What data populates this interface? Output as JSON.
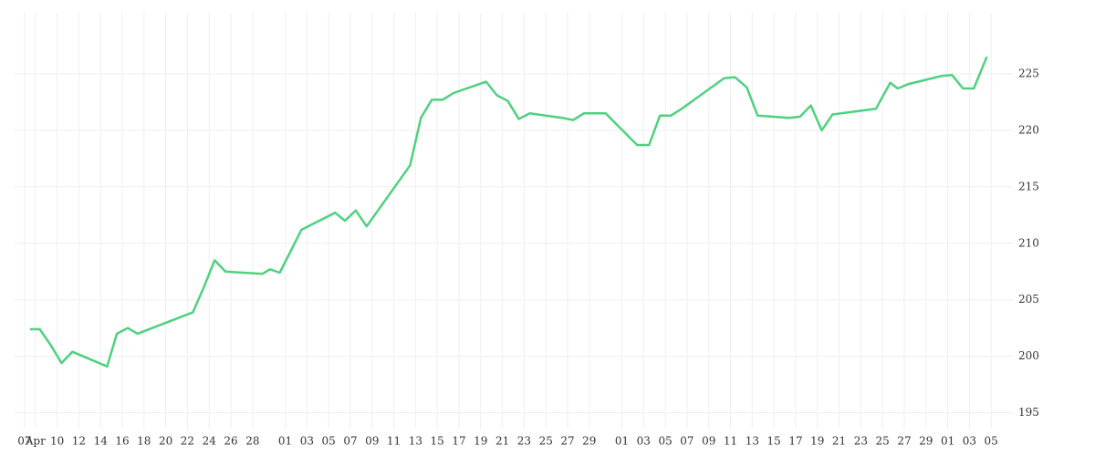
{
  "chart_data": {
    "type": "line",
    "x": [
      0.5,
      1.4,
      2.4,
      3.4,
      4.4,
      7.6,
      8.5,
      9.5,
      10.4,
      15.5,
      16.5,
      17.5,
      18.5,
      21.9,
      22.6,
      23.5,
      25.5,
      28.6,
      29.5,
      30.5,
      31.5,
      35.5,
      36.5,
      37.5,
      38.5,
      39.5,
      42.5,
      43.5,
      44.5,
      45.5,
      46.5,
      49.5,
      50.5,
      51.5,
      53.5,
      56.4,
      57.5,
      58.5,
      59.5,
      60.5,
      64.4,
      65.4,
      66.5,
      67.5,
      70.4,
      71.4,
      72.4,
      73.4,
      74.4,
      78.4,
      79.7,
      80.4,
      81.4,
      84.4,
      85.4,
      86.4,
      87.4,
      88.6
    ],
    "series": [
      {
        "color": "#4fd17f",
        "values": [
          202.4,
          202.4,
          201.0,
          199.4,
          200.4,
          199.1,
          202.0,
          202.5,
          202.0,
          203.9,
          206.1,
          208.5,
          207.5,
          207.3,
          207.7,
          207.4,
          211.2,
          212.7,
          212.0,
          212.9,
          211.5,
          216.9,
          221.1,
          222.7,
          222.7,
          223.3,
          224.3,
          223.1,
          222.6,
          221.0,
          221.5,
          221.1,
          220.9,
          221.5,
          221.5,
          218.7,
          218.7,
          221.3,
          221.3,
          221.9,
          224.6,
          224.7,
          223.8,
          221.3,
          221.1,
          221.2,
          222.2,
          220.0,
          221.4,
          221.9,
          224.2,
          223.7,
          224.1,
          224.8,
          224.9,
          223.7,
          223.7,
          226.5
        ]
      }
    ],
    "xlim": [
      -1,
      91
    ],
    "xticks": [
      {
        "value": 0,
        "label": "07"
      },
      {
        "value": 1,
        "label": "Apr"
      },
      {
        "value": 3,
        "label": "10"
      },
      {
        "value": 5,
        "label": "12"
      },
      {
        "value": 7,
        "label": "14"
      },
      {
        "value": 9,
        "label": "16"
      },
      {
        "value": 11,
        "label": "18"
      },
      {
        "value": 13,
        "label": "20"
      },
      {
        "value": 15,
        "label": "22"
      },
      {
        "value": 17,
        "label": "24"
      },
      {
        "value": 19,
        "label": "26"
      },
      {
        "value": 21,
        "label": "28"
      },
      {
        "value": 24,
        "label": "01"
      },
      {
        "value": 26,
        "label": "03"
      },
      {
        "value": 28,
        "label": "05"
      },
      {
        "value": 30,
        "label": "07"
      },
      {
        "value": 32,
        "label": "09"
      },
      {
        "value": 34,
        "label": "11"
      },
      {
        "value": 36,
        "label": "13"
      },
      {
        "value": 38,
        "label": "15"
      },
      {
        "value": 40,
        "label": "17"
      },
      {
        "value": 42,
        "label": "19"
      },
      {
        "value": 44,
        "label": "21"
      },
      {
        "value": 46,
        "label": "23"
      },
      {
        "value": 48,
        "label": "25"
      },
      {
        "value": 50,
        "label": "27"
      },
      {
        "value": 52,
        "label": "29"
      },
      {
        "value": 55,
        "label": "01"
      },
      {
        "value": 57,
        "label": "03"
      },
      {
        "value": 59,
        "label": "05"
      },
      {
        "value": 61,
        "label": "07"
      },
      {
        "value": 63,
        "label": "09"
      },
      {
        "value": 65,
        "label": "11"
      },
      {
        "value": 67,
        "label": "13"
      },
      {
        "value": 69,
        "label": "15"
      },
      {
        "value": 71,
        "label": "17"
      },
      {
        "value": 73,
        "label": "19"
      },
      {
        "value": 75,
        "label": "21"
      },
      {
        "value": 77,
        "label": "23"
      },
      {
        "value": 79,
        "label": "25"
      },
      {
        "value": 81,
        "label": "27"
      },
      {
        "value": 83,
        "label": "29"
      },
      {
        "value": 85,
        "label": "01"
      },
      {
        "value": 87,
        "label": "03"
      },
      {
        "value": 89,
        "label": "05"
      }
    ],
    "ylim": [
      193.6,
      230.4
    ],
    "yticks": [
      195,
      200,
      205,
      210,
      215,
      220,
      225
    ],
    "grid": true
  }
}
